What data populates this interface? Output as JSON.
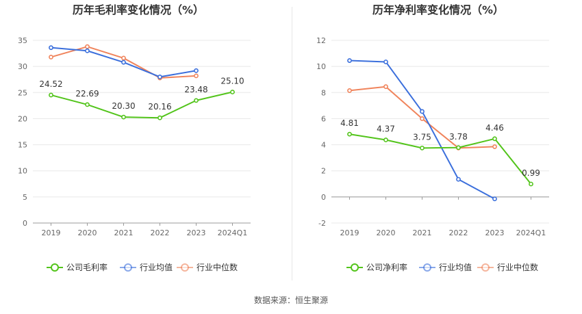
{
  "colors": {
    "company": "#52c41a",
    "industry_avg": "#3b6fdc",
    "industry_median": "#f0845c"
  },
  "source_text": "数据来源：恒生聚源",
  "chart_data": [
    {
      "type": "line",
      "title": "历年毛利率变化情况（%）",
      "categories": [
        "2019",
        "2020",
        "2021",
        "2022",
        "2023",
        "2024Q1"
      ],
      "ylim": [
        0,
        35
      ],
      "yticks": [
        0,
        5,
        10,
        15,
        20,
        25,
        30,
        35
      ],
      "grid": true,
      "legend_position": "bottom",
      "series": [
        {
          "name": "公司毛利率",
          "color_key": "company",
          "values": [
            24.52,
            22.69,
            20.3,
            20.16,
            23.48,
            25.1
          ],
          "labels": [
            "24.52",
            "22.69",
            "20.30",
            "20.16",
            "23.48",
            "25.10"
          ]
        },
        {
          "name": "行业均值",
          "color_key": "industry_avg",
          "values": [
            33.6,
            33.0,
            30.8,
            28.0,
            29.2,
            null
          ]
        },
        {
          "name": "行业中位数",
          "color_key": "industry_median",
          "values": [
            31.8,
            33.8,
            31.6,
            27.8,
            28.2,
            null
          ]
        }
      ]
    },
    {
      "type": "line",
      "title": "历年净利率变化情况（%）",
      "categories": [
        "2019",
        "2020",
        "2021",
        "2022",
        "2023",
        "2024Q1"
      ],
      "ylim": [
        -2,
        12
      ],
      "yticks": [
        -2,
        0,
        2,
        4,
        6,
        8,
        10,
        12
      ],
      "grid": true,
      "legend_position": "bottom",
      "series": [
        {
          "name": "公司净利率",
          "color_key": "company",
          "values": [
            4.81,
            4.37,
            3.75,
            3.78,
            4.46,
            0.99
          ],
          "labels": [
            "4.81",
            "4.37",
            "3.75",
            "3.78",
            "4.46",
            "0.99"
          ]
        },
        {
          "name": "行业均值",
          "color_key": "industry_avg",
          "values": [
            10.45,
            10.35,
            6.55,
            1.35,
            -0.15,
            null
          ]
        },
        {
          "name": "行业中位数",
          "color_key": "industry_median",
          "values": [
            8.15,
            8.45,
            6.0,
            3.75,
            3.85,
            null
          ]
        }
      ]
    }
  ]
}
